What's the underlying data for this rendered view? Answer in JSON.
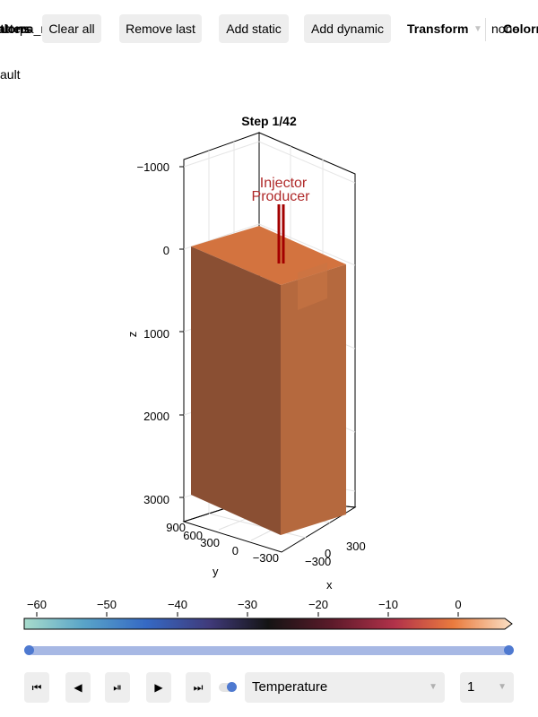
{
  "toolbar": {
    "overlap_left": [
      "atters",
      "tlons",
      "pa_n"
    ],
    "clear_all": "Clear all",
    "remove_last": "Remove last",
    "add_static": "Add static",
    "add_dynamic": "Add dynamic",
    "transform_label": "Transform",
    "transform_value": "none",
    "colormap_label": "Colorm",
    "sub_text": "ault"
  },
  "plot": {
    "title": "Step 1/42",
    "z_label": "z",
    "x_label": "x",
    "y_label": "y",
    "z_ticks": [
      "−1000",
      "0",
      "1000",
      "2000",
      "3000"
    ],
    "y_ticks": [
      "900",
      "600",
      "300",
      "0",
      "−300"
    ],
    "x_ticks": [
      "300",
      "0",
      "−300"
    ],
    "well_labels": [
      "Injector",
      "Producer"
    ],
    "colors": {
      "top_face": "#d3733f",
      "left_face": "#8a4f33",
      "right_face": "#b5693e",
      "well": "#a30000",
      "well_label": "#b02a2a"
    }
  },
  "colorbar": {
    "ticks": [
      "−60",
      "−50",
      "−40",
      "−30",
      "−20",
      "−10",
      "0"
    ],
    "min": -63,
    "max": 7.5
  },
  "slider": {
    "step_fraction_start": 0,
    "step_fraction_end": 1
  },
  "controls": {
    "first_icon": "⏮",
    "back_icon": "◀",
    "playpause_icon": "⏯",
    "forward_icon": "▶",
    "last_icon": "⏭",
    "variable": "Temperature",
    "index": "1",
    "chevron": "▼"
  }
}
